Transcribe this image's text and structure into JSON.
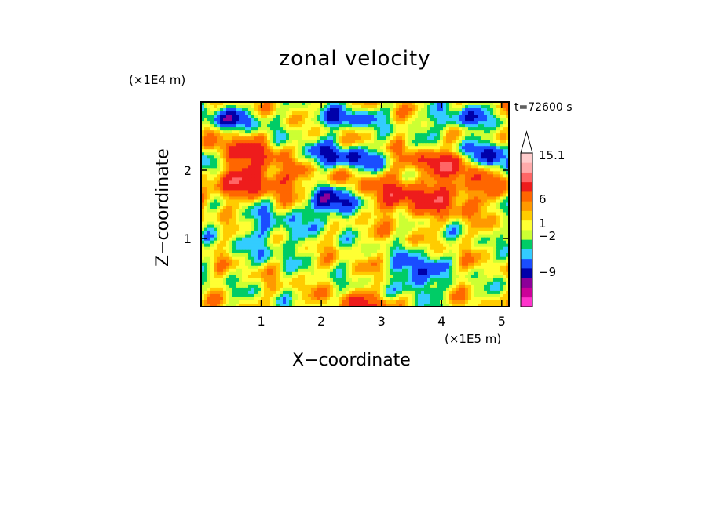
{
  "chart_data": {
    "type": "heatmap",
    "title": "zonal velocity",
    "xlabel": "X−coordinate",
    "ylabel": "Z−coordinate",
    "x_unit": "(×1E5 m)",
    "y_unit": "(×1E4 m)",
    "time_label": "t=72600 s",
    "xlim": [
      0,
      5.12
    ],
    "ylim": [
      0,
      3.0
    ],
    "x_ticks": [
      "1",
      "2",
      "3",
      "4",
      "5"
    ],
    "x_tick_values": [
      1,
      2,
      3,
      4,
      5
    ],
    "y_ticks": [
      "1",
      "2"
    ],
    "y_tick_values": [
      1,
      2
    ],
    "colorbar": {
      "levels": [
        {
          "color": "#ff33cc"
        },
        {
          "color": "#cc0099"
        },
        {
          "color": "#8c0099"
        },
        {
          "color": "#0000aa"
        },
        {
          "color": "#1a4dff"
        },
        {
          "color": "#33ccff"
        },
        {
          "color": "#00cc66"
        },
        {
          "color": "#ccff33"
        },
        {
          "color": "#ffff33"
        },
        {
          "color": "#ffcc00"
        },
        {
          "color": "#ff9900"
        },
        {
          "color": "#ff6600"
        },
        {
          "color": "#ee1c1c"
        },
        {
          "color": "#ff6666"
        },
        {
          "color": "#ffaaaa"
        },
        {
          "color": "#ffcccc"
        },
        {
          "color": "#ffffff"
        }
      ],
      "tick_labels": [
        "15.1",
        "6",
        "1",
        "−2",
        "−9"
      ],
      "tick_values": [
        15.1,
        6,
        1,
        -2,
        -9
      ]
    }
  }
}
